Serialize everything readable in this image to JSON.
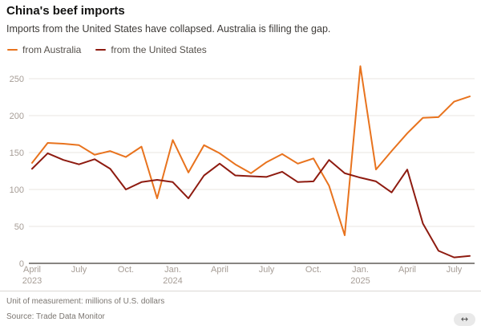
{
  "header": {
    "title": "China's beef imports",
    "subtitle": "Imports from the United States have collapsed. Australia is filling the gap."
  },
  "legend": [
    {
      "label": "from Australia",
      "color": "#e8731e"
    },
    {
      "label": "from the United States",
      "color": "#8e1b10"
    }
  ],
  "chart_data": {
    "type": "line",
    "title": "China's beef imports",
    "xlabel": "",
    "ylabel": "millions of U.S. dollars",
    "ylim": [
      0,
      250
    ],
    "yticks": [
      0,
      50,
      100,
      150,
      200,
      250
    ],
    "grid": "horizontal",
    "legend_position": "top-left",
    "x_labels": [
      "Apr 2023",
      "May 2023",
      "Jun 2023",
      "Jul 2023",
      "Aug 2023",
      "Sep 2023",
      "Oct 2023",
      "Nov 2023",
      "Dec 2023",
      "Jan 2024",
      "Feb 2024",
      "Mar 2024",
      "Apr 2024",
      "May 2024",
      "Jun 2024",
      "Jul 2024",
      "Aug 2024",
      "Sep 2024",
      "Oct 2024",
      "Nov 2024",
      "Dec 2024",
      "Jan 2025",
      "Feb 2025",
      "Mar 2025",
      "Apr 2025",
      "May 2025",
      "Jun 2025",
      "Jul 2025",
      "Aug 2025"
    ],
    "xticks": [
      {
        "index": 0,
        "lines": [
          "April",
          "2023"
        ]
      },
      {
        "index": 3,
        "lines": [
          "July"
        ]
      },
      {
        "index": 6,
        "lines": [
          "Oct."
        ]
      },
      {
        "index": 9,
        "lines": [
          "Jan.",
          "2024"
        ]
      },
      {
        "index": 12,
        "lines": [
          "April"
        ]
      },
      {
        "index": 15,
        "lines": [
          "July"
        ]
      },
      {
        "index": 18,
        "lines": [
          "Oct."
        ]
      },
      {
        "index": 21,
        "lines": [
          "Jan.",
          "2025"
        ]
      },
      {
        "index": 24,
        "lines": [
          "April"
        ]
      },
      {
        "index": 27,
        "lines": [
          "July"
        ]
      }
    ],
    "series": [
      {
        "name": "from Australia",
        "color": "#e8731e",
        "values": [
          136,
          163,
          162,
          160,
          147,
          152,
          144,
          158,
          88,
          167,
          123,
          160,
          149,
          134,
          122,
          137,
          148,
          135,
          142,
          105,
          38,
          267,
          127,
          152,
          176,
          197,
          198,
          219,
          226
        ]
      },
      {
        "name": "from the United States",
        "color": "#8e1b10",
        "values": [
          128,
          149,
          140,
          134,
          141,
          128,
          100,
          110,
          113,
          110,
          88,
          119,
          135,
          119,
          118,
          117,
          124,
          110,
          111,
          140,
          122,
          116,
          111,
          96,
          127,
          54,
          17,
          8,
          10
        ]
      }
    ],
    "colors": {
      "grid": "#e8e5e2",
      "baseline": "#605d59",
      "tick_text": "#a69d96"
    }
  },
  "footer": {
    "unit": "Unit of measurement: millions of U.S. dollars",
    "source": "Source: Trade Data Monitor",
    "resize_icon": "↔"
  }
}
